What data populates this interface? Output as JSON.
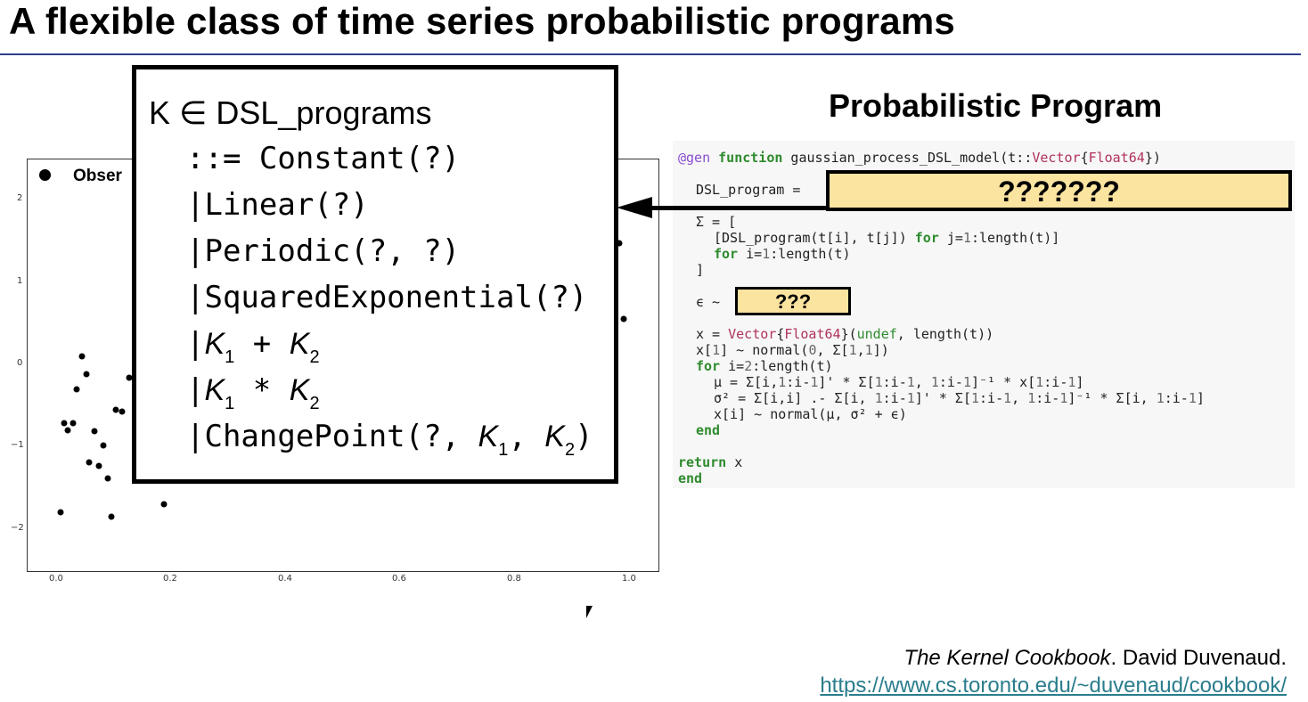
{
  "slide": {
    "title": "A flexible class of time series probabilistic programs",
    "legend_label": "Obser",
    "right_title": "Probabilistic Program"
  },
  "plot": {
    "y_ticks": [
      "2",
      "1",
      "0",
      "−1",
      "−2"
    ],
    "x_ticks": [
      "0.0",
      "0.2",
      "0.4",
      "0.6",
      "0.8",
      "1.0"
    ]
  },
  "grammar": {
    "head": "K ∈ DSL_programs",
    "rules": [
      "::= Constant(?)",
      "|Linear(?)",
      "|Periodic(?, ?)",
      "|SquaredExponential(?)"
    ],
    "k_plus": "+",
    "k_times": "*",
    "changepoint_prefix": "|ChangePoint(?, "
  },
  "code": {
    "blank_program": "???????",
    "blank_noise": "???"
  },
  "citation": {
    "book": "The Kernel Cookbook",
    "author": ". David Duvenaud.",
    "url": "https://www.cs.toronto.edu/~duvenaud/cookbook/"
  },
  "colors": {
    "title_rule": "#2c3e8a",
    "highlight": "#fbe3a0",
    "link": "#2a7d8c",
    "keyword": "#2e8b2e",
    "type": "#b0325a"
  }
}
